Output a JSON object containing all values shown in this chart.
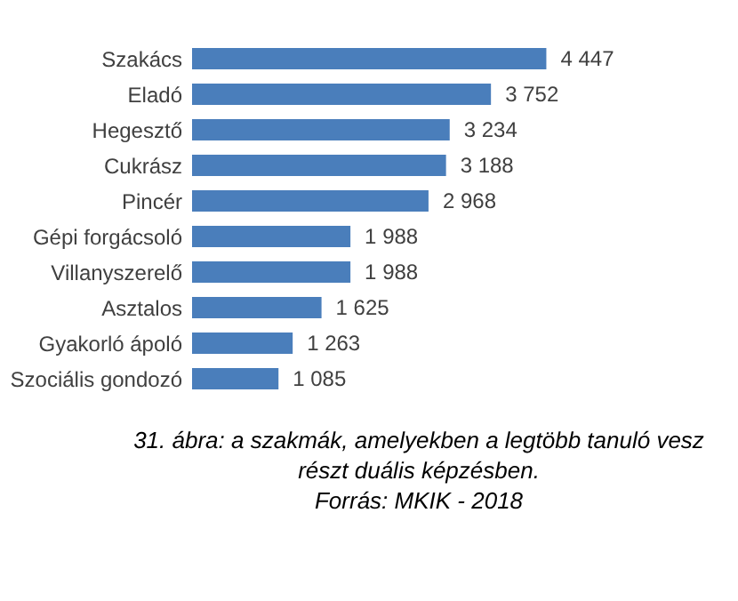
{
  "chart_data": {
    "type": "bar",
    "orientation": "horizontal",
    "categories": [
      "Szakács",
      "Eladó",
      "Hegesztő",
      "Cukrász",
      "Pincér",
      "Gépi forgácsoló",
      "Villanyszerelő",
      "Asztalos",
      "Gyakorló ápoló",
      "Szociális gondozó"
    ],
    "values": [
      4447,
      3752,
      3234,
      3188,
      2968,
      1988,
      1988,
      1625,
      1263,
      1085
    ],
    "value_labels": [
      "4 447",
      "3 752",
      "3 234",
      "3 188",
      "2 968",
      "1 988",
      "1 988",
      "1 625",
      "1 263",
      "1 085"
    ],
    "color": "#4a7ebb",
    "grid": false,
    "annotations": [
      "31. ábra: a szakmák, amelyekben a legtöbb tanuló vesz részt duális képzésben.",
      "Forrás: MKIK - 2018"
    ]
  }
}
